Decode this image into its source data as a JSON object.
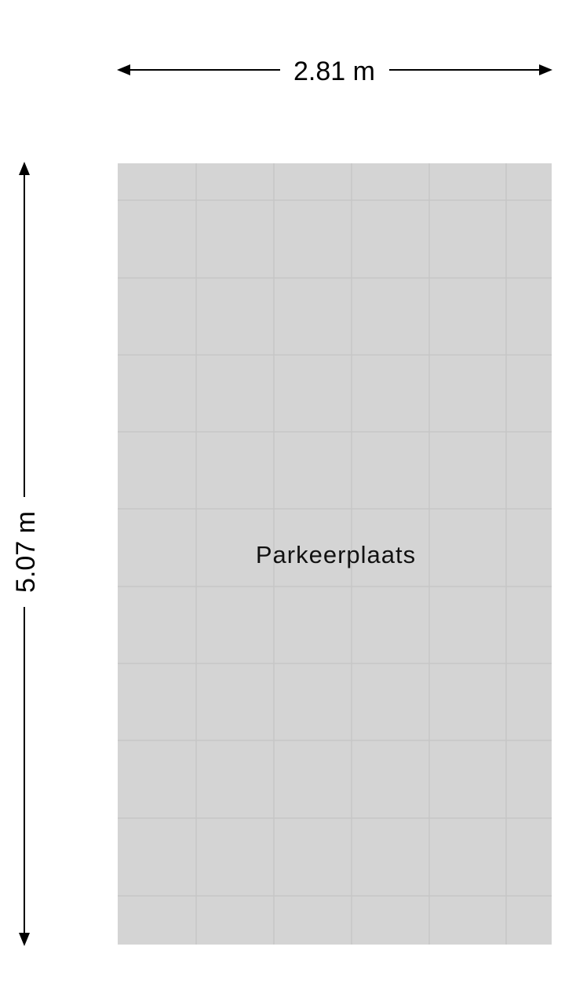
{
  "room": {
    "label": "Parkeerplaats",
    "fill": "#d4d4d4",
    "grid_color": "#c6c6c6"
  },
  "dimensions": {
    "width_label": "2.81 m",
    "height_label": "5.07 m",
    "line_color": "#000000"
  }
}
